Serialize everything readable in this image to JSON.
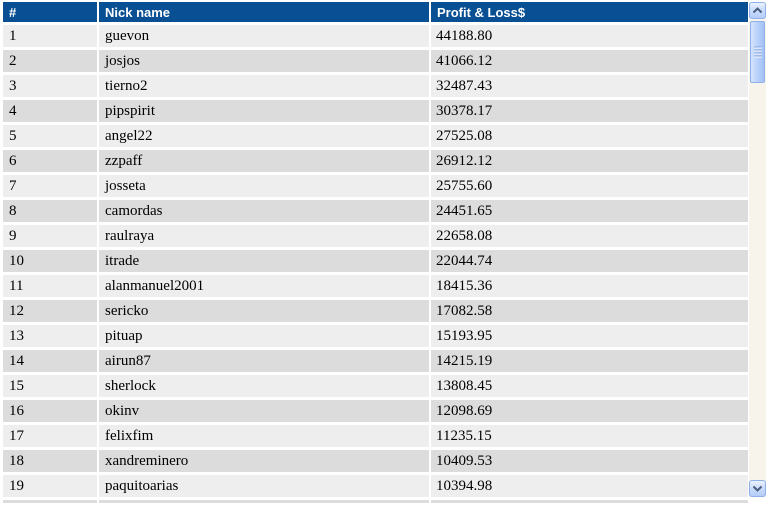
{
  "colors": {
    "header_bg": "#084F93",
    "header_text": "#FFFFFF",
    "row_odd_bg": "#EEEEEE",
    "row_even_bg": "#DCDCDC",
    "row_text": "#000000",
    "scrollbar_track": "#F7F4EB",
    "scrollbar_thumb": "#AFCAF8",
    "scrollbar_border": "#8FB0E8",
    "scrollbar_arrow": "#4A5D7E"
  },
  "table": {
    "columns": [
      {
        "key": "rank",
        "label": "#"
      },
      {
        "key": "nick",
        "label": "Nick name"
      },
      {
        "key": "pnl",
        "label": "Profit & Loss$"
      }
    ],
    "rows": [
      {
        "rank": "1",
        "nick": "guevon",
        "pnl": "44188.80"
      },
      {
        "rank": "2",
        "nick": "josjos",
        "pnl": "41066.12"
      },
      {
        "rank": "3",
        "nick": "tierno2",
        "pnl": "32487.43"
      },
      {
        "rank": "4",
        "nick": "pipspirit",
        "pnl": "30378.17"
      },
      {
        "rank": "5",
        "nick": "angel22",
        "pnl": "27525.08"
      },
      {
        "rank": "6",
        "nick": "zzpaff",
        "pnl": "26912.12"
      },
      {
        "rank": "7",
        "nick": "josseta",
        "pnl": "25755.60"
      },
      {
        "rank": "8",
        "nick": "camordas",
        "pnl": "24451.65"
      },
      {
        "rank": "9",
        "nick": "raulraya",
        "pnl": "22658.08"
      },
      {
        "rank": "10",
        "nick": "itrade",
        "pnl": "22044.74"
      },
      {
        "rank": "11",
        "nick": "alanmanuel2001",
        "pnl": "18415.36"
      },
      {
        "rank": "12",
        "nick": "sericko",
        "pnl": "17082.58"
      },
      {
        "rank": "13",
        "nick": "pituap",
        "pnl": "15193.95"
      },
      {
        "rank": "14",
        "nick": "airun87",
        "pnl": "14215.19"
      },
      {
        "rank": "15",
        "nick": "sherlock",
        "pnl": "13808.45"
      },
      {
        "rank": "16",
        "nick": "okinv",
        "pnl": "12098.69"
      },
      {
        "rank": "17",
        "nick": "felixfim",
        "pnl": "11235.15"
      },
      {
        "rank": "18",
        "nick": "xandreminero",
        "pnl": "10409.53"
      },
      {
        "rank": "19",
        "nick": "paquitoarias",
        "pnl": "10394.98"
      }
    ]
  },
  "scrollbar": {
    "up_icon": "chevron-up",
    "down_icon": "chevron-down"
  }
}
